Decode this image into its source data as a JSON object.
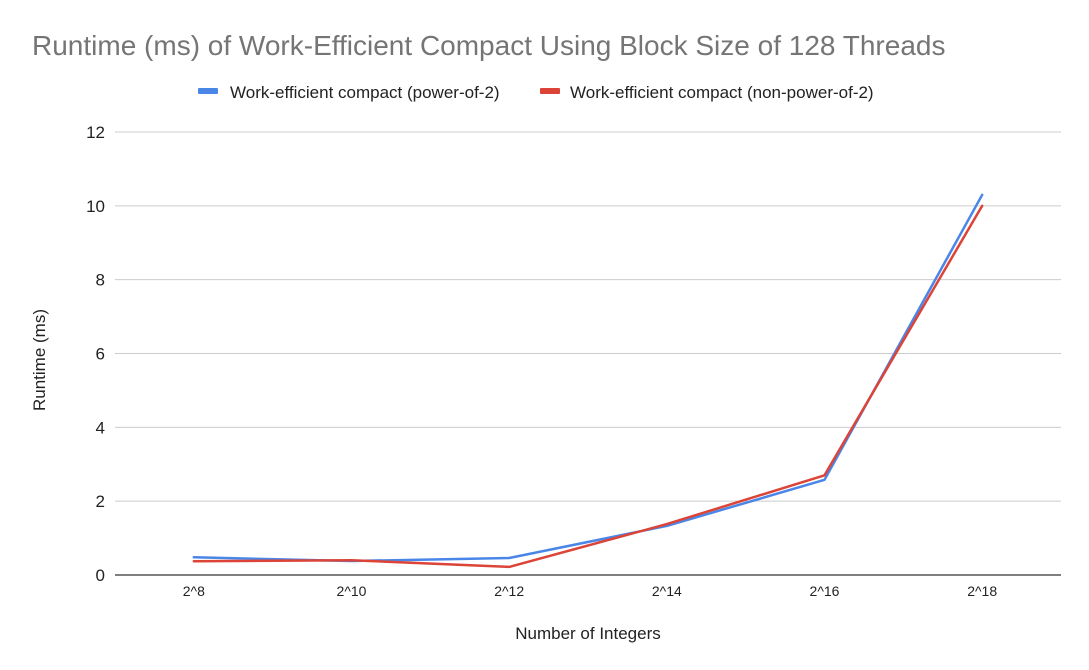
{
  "chart_data": {
    "type": "line",
    "title": "Runtime (ms) of Work-Efficient Compact Using Block Size of 128 Threads",
    "xlabel": "Number of Integers",
    "ylabel": "Runtime (ms)",
    "categories": [
      "2^8",
      "2^10",
      "2^12",
      "2^14",
      "2^16",
      "2^18"
    ],
    "ylim": [
      0,
      12
    ],
    "yticks": [
      "0",
      "2",
      "4",
      "6",
      "8",
      "10",
      "12"
    ],
    "grid": true,
    "legend_position": "top",
    "series": [
      {
        "name": "Work-efficient compact (power-of-2)",
        "color": "#4a86e8",
        "values": [
          0.48,
          0.38,
          0.46,
          1.33,
          2.58,
          10.3
        ]
      },
      {
        "name": "Work-efficient compact (non-power-of-2)",
        "color": "#db4437",
        "values": [
          0.37,
          0.4,
          0.22,
          1.38,
          2.7,
          10.0
        ]
      }
    ]
  }
}
